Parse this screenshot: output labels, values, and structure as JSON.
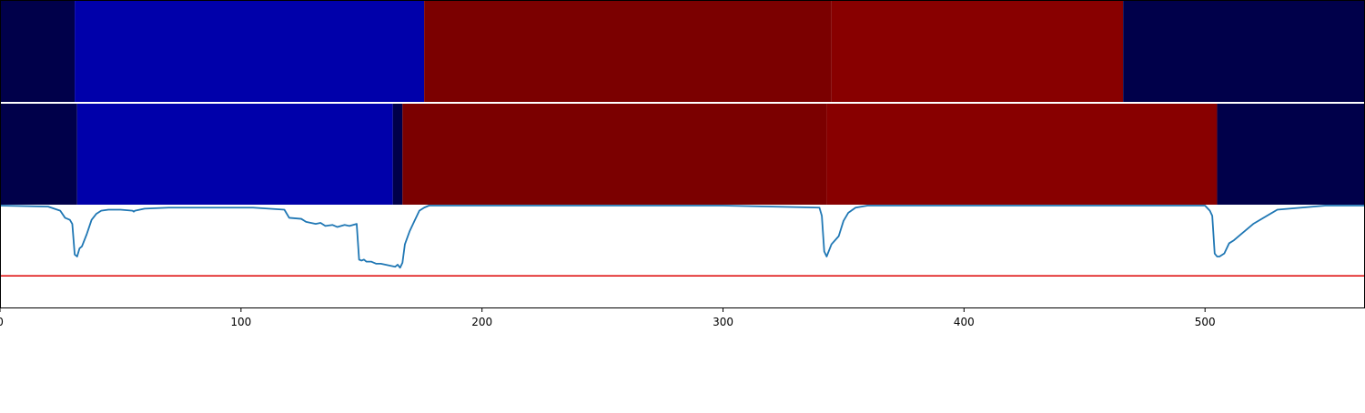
{
  "chart_data": {
    "type": "heatmap",
    "xlim": [
      0,
      566
    ],
    "xticks": [
      0,
      100,
      200,
      300,
      400,
      500
    ],
    "xtick_labels": [
      "0",
      "100",
      "200",
      "300",
      "400",
      "500"
    ],
    "grid": false,
    "legend": "none",
    "rows": [
      {
        "segments": [
          {
            "start": 0,
            "end": 31,
            "color": "#00004a"
          },
          {
            "start": 31,
            "end": 176,
            "color": "#0000aa"
          },
          {
            "start": 176,
            "end": 345,
            "color": "#7b0000"
          },
          {
            "start": 345,
            "end": 466,
            "color": "#880000"
          },
          {
            "start": 466,
            "end": 566,
            "color": "#00004a"
          }
        ]
      },
      {
        "segments": [
          {
            "start": 0,
            "end": 32,
            "color": "#00004a"
          },
          {
            "start": 32,
            "end": 163,
            "color": "#0000aa"
          },
          {
            "start": 163,
            "end": 167,
            "color": "#00004a"
          },
          {
            "start": 167,
            "end": 343,
            "color": "#7b0000"
          },
          {
            "start": 343,
            "end": 505,
            "color": "#880000"
          },
          {
            "start": 505,
            "end": 566,
            "color": "#00004a"
          }
        ]
      }
    ],
    "line_panel": {
      "ylim": [
        0,
        1
      ],
      "threshold": 0.31,
      "threshold_color": "#dd0000",
      "line_color": "#1f77b4",
      "series": {
        "x": [
          0,
          20,
          25,
          27,
          29,
          30,
          31,
          32,
          33,
          34,
          36,
          38,
          40,
          42,
          45,
          50,
          55,
          55.5,
          56,
          60,
          70,
          90,
          105,
          118,
          120,
          125,
          127,
          131,
          133,
          135,
          138,
          140,
          143,
          145,
          148,
          149,
          150,
          151,
          152,
          154,
          156,
          158,
          160,
          162,
          164,
          165,
          166,
          167,
          168,
          170,
          172,
          174,
          176,
          178,
          180,
          200,
          250,
          300,
          340,
          341,
          342,
          343,
          345,
          348,
          350,
          352,
          355,
          360,
          375,
          470,
          500,
          502,
          503,
          504,
          505,
          506,
          508,
          510,
          512,
          515,
          520,
          530,
          550,
          566
        ],
        "y": [
          1.0,
          0.99,
          0.95,
          0.88,
          0.86,
          0.82,
          0.52,
          0.5,
          0.58,
          0.6,
          0.72,
          0.86,
          0.92,
          0.95,
          0.96,
          0.96,
          0.95,
          0.94,
          0.95,
          0.97,
          0.98,
          0.98,
          0.98,
          0.96,
          0.88,
          0.87,
          0.84,
          0.82,
          0.83,
          0.8,
          0.81,
          0.79,
          0.81,
          0.8,
          0.82,
          0.47,
          0.46,
          0.47,
          0.45,
          0.45,
          0.43,
          0.43,
          0.42,
          0.41,
          0.4,
          0.42,
          0.39,
          0.44,
          0.62,
          0.75,
          0.85,
          0.95,
          0.98,
          1.0,
          1.0,
          1.0,
          1.0,
          1.0,
          0.98,
          0.9,
          0.55,
          0.5,
          0.62,
          0.7,
          0.85,
          0.93,
          0.98,
          1.0,
          1.0,
          1.0,
          1.0,
          0.95,
          0.9,
          0.53,
          0.5,
          0.5,
          0.53,
          0.63,
          0.66,
          0.72,
          0.82,
          0.96,
          1.0,
          1.0
        ]
      }
    }
  }
}
